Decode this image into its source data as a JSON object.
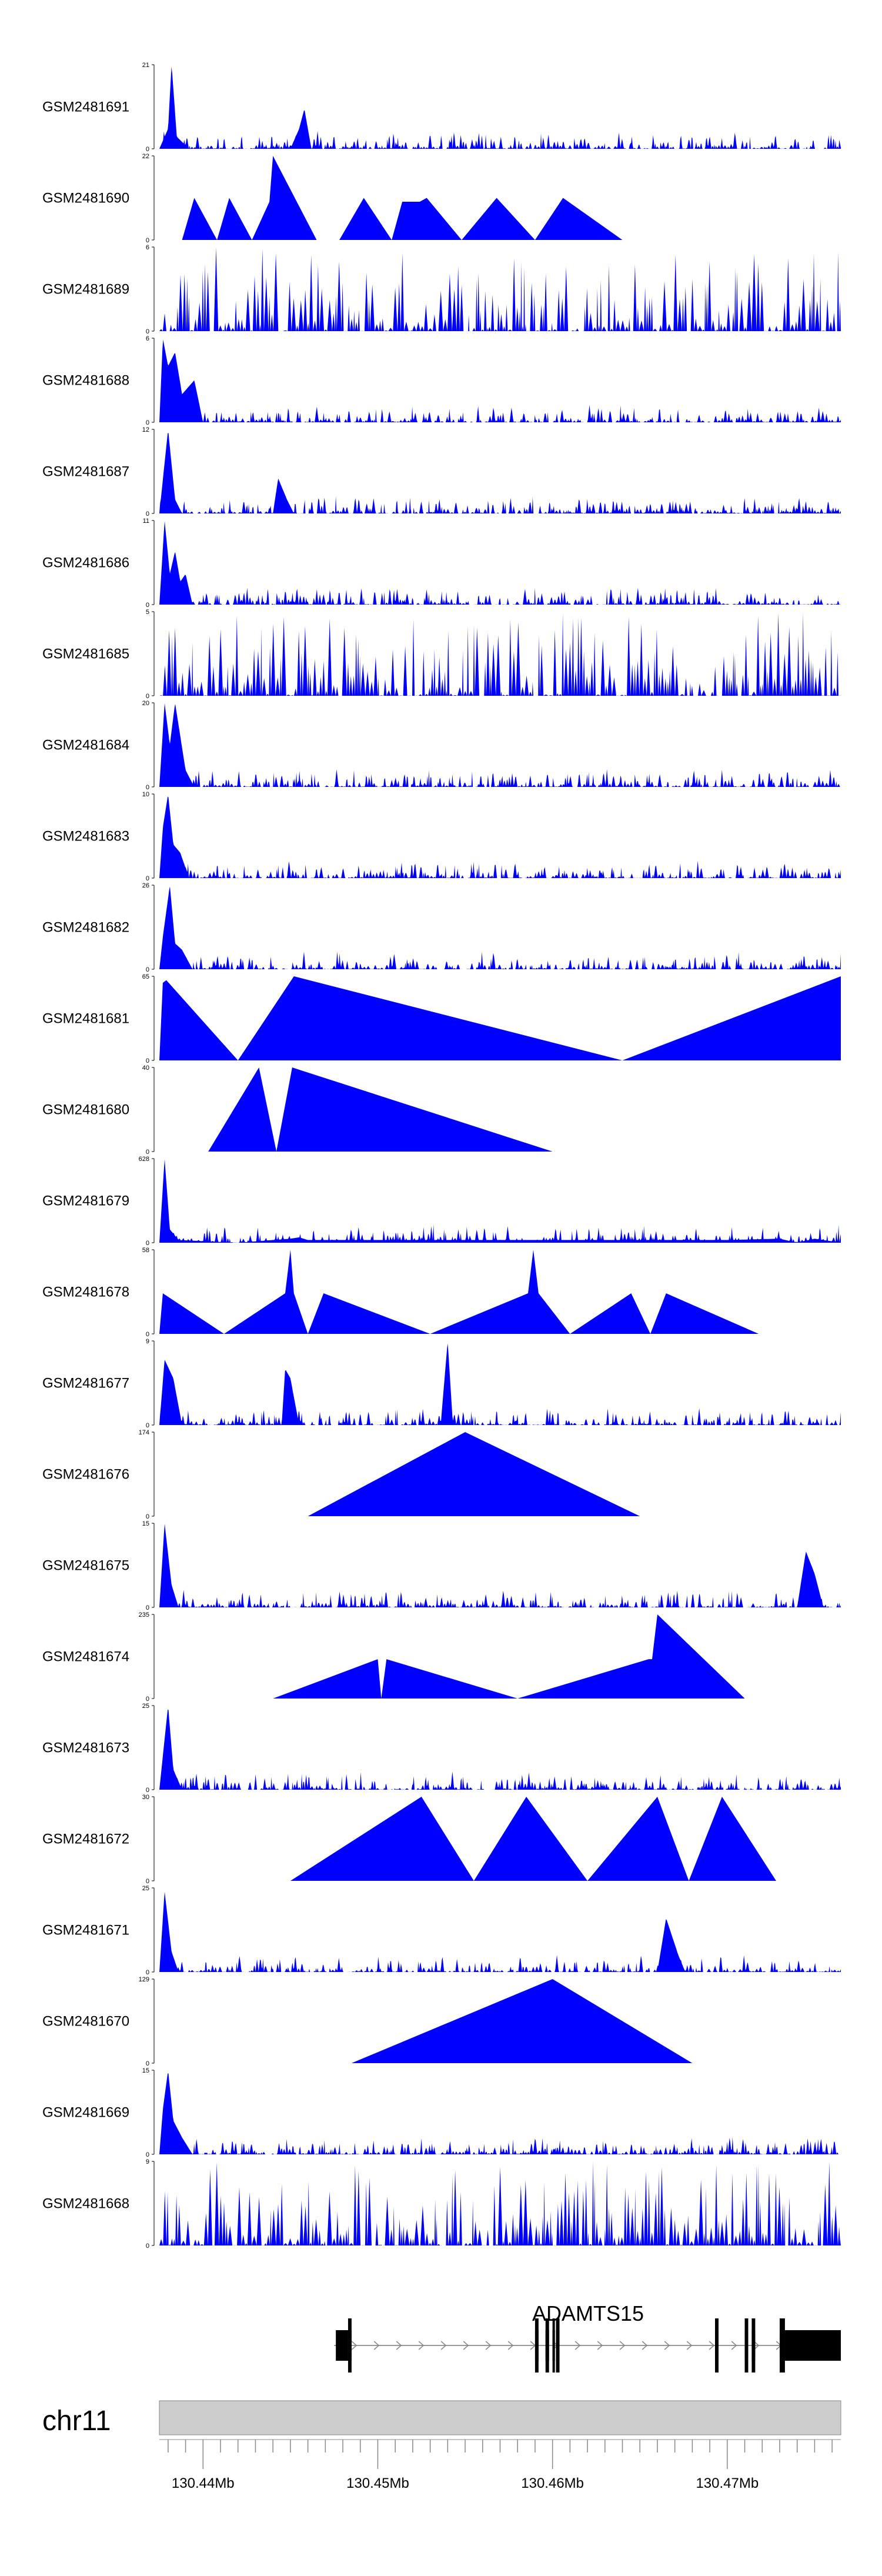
{
  "chart_data": {
    "type": "area",
    "title": "",
    "chromosome": "chr11",
    "gene": "ADAMTS15",
    "x_range_mb": [
      130.4375,
      130.4765
    ],
    "x_ticks": [
      "130.44Mb",
      "130.45Mb",
      "130.46Mb",
      "130.47Mb"
    ],
    "x_tick_values": [
      130.44,
      130.45,
      130.46,
      130.47
    ],
    "colors": {
      "fill": "#0000ff",
      "axis": "#000000",
      "ideogram": "#cccccc",
      "gene": "#000000"
    },
    "tracks": [
      {
        "name": "GSM2481691",
        "ymax": "21",
        "ymin": "0",
        "ymax_value": 21,
        "pattern": "noise",
        "points": [
          [
            130.4375,
            0
          ],
          [
            130.438,
            5
          ],
          [
            130.4382,
            21
          ],
          [
            130.4385,
            3
          ],
          [
            130.4392,
            0
          ],
          [
            130.445,
            0
          ],
          [
            130.4455,
            5
          ],
          [
            130.4458,
            10
          ],
          [
            130.4462,
            0
          ]
        ]
      },
      {
        "name": "GSM2481690",
        "ymax": "22",
        "ymin": "0",
        "ymax_value": 22,
        "pattern": "sparse",
        "points": [
          [
            130.4375,
            0
          ],
          [
            130.4388,
            0
          ],
          [
            130.4395,
            11
          ],
          [
            130.4408,
            0
          ],
          [
            130.4415,
            11
          ],
          [
            130.4428,
            0
          ],
          [
            130.4438,
            10
          ],
          [
            130.444,
            22
          ],
          [
            130.4465,
            0
          ],
          [
            130.4478,
            0
          ],
          [
            130.4492,
            11
          ],
          [
            130.4508,
            0
          ],
          [
            130.4514,
            10
          ],
          [
            130.4524,
            10
          ],
          [
            130.4528,
            11
          ],
          [
            130.4548,
            0
          ],
          [
            130.4568,
            11
          ],
          [
            130.459,
            0
          ],
          [
            130.4606,
            11
          ],
          [
            130.464,
            0
          ],
          [
            130.4765,
            0
          ]
        ]
      },
      {
        "name": "GSM2481689",
        "ymax": "6",
        "ymin": "0",
        "ymax_value": 6,
        "pattern": "dense"
      },
      {
        "name": "GSM2481688",
        "ymax": "6",
        "ymin": "0",
        "ymax_value": 6,
        "pattern": "noise",
        "points": [
          [
            130.4375,
            0
          ],
          [
            130.4377,
            6
          ],
          [
            130.438,
            4
          ],
          [
            130.4384,
            5
          ],
          [
            130.4388,
            2
          ],
          [
            130.4395,
            3
          ],
          [
            130.44,
            0
          ]
        ]
      },
      {
        "name": "GSM2481687",
        "ymax": "12",
        "ymin": "0",
        "ymax_value": 12,
        "pattern": "noise",
        "points": [
          [
            130.4375,
            0
          ],
          [
            130.438,
            12
          ],
          [
            130.4384,
            2
          ],
          [
            130.4388,
            0
          ],
          [
            130.444,
            0
          ],
          [
            130.4443,
            5
          ],
          [
            130.4448,
            2
          ],
          [
            130.4452,
            0
          ]
        ]
      },
      {
        "name": "GSM2481686",
        "ymax": "11",
        "ymin": "0",
        "ymax_value": 11,
        "pattern": "noise",
        "points": [
          [
            130.4375,
            0
          ],
          [
            130.4378,
            11
          ],
          [
            130.4381,
            4
          ],
          [
            130.4384,
            7
          ],
          [
            130.4387,
            3
          ],
          [
            130.439,
            4
          ],
          [
            130.4394,
            0
          ]
        ]
      },
      {
        "name": "GSM2481685",
        "ymax": "5",
        "ymin": "0",
        "ymax_value": 5,
        "pattern": "dense"
      },
      {
        "name": "GSM2481684",
        "ymax": "20",
        "ymin": "0",
        "ymax_value": 20,
        "pattern": "noise",
        "points": [
          [
            130.4375,
            0
          ],
          [
            130.4378,
            20
          ],
          [
            130.4381,
            10
          ],
          [
            130.4384,
            20
          ],
          [
            130.4387,
            12
          ],
          [
            130.439,
            4
          ],
          [
            130.4395,
            0
          ]
        ]
      },
      {
        "name": "GSM2481683",
        "ymax": "10",
        "ymin": "0",
        "ymax_value": 10,
        "pattern": "noise",
        "points": [
          [
            130.4375,
            0
          ],
          [
            130.4377,
            6
          ],
          [
            130.438,
            10
          ],
          [
            130.4383,
            4
          ],
          [
            130.4387,
            3
          ],
          [
            130.4392,
            0
          ]
        ]
      },
      {
        "name": "GSM2481682",
        "ymax": "26",
        "ymin": "0",
        "ymax_value": 26,
        "pattern": "noise",
        "points": [
          [
            130.4375,
            0
          ],
          [
            130.4377,
            10
          ],
          [
            130.4381,
            26
          ],
          [
            130.4384,
            8
          ],
          [
            130.4388,
            6
          ],
          [
            130.4394,
            0
          ]
        ]
      },
      {
        "name": "GSM2481681",
        "ymax": "65",
        "ymin": "0",
        "ymax_value": 65,
        "pattern": "sparse",
        "points": [
          [
            130.4375,
            0
          ],
          [
            130.4377,
            60
          ],
          [
            130.4379,
            62
          ],
          [
            130.442,
            0
          ],
          [
            130.4452,
            65
          ],
          [
            130.464,
            0
          ],
          [
            130.4765,
            65
          ]
        ]
      },
      {
        "name": "GSM2481680",
        "ymax": "40",
        "ymin": "0",
        "ymax_value": 40,
        "pattern": "sparse",
        "points": [
          [
            130.4375,
            0
          ],
          [
            130.4403,
            0
          ],
          [
            130.4432,
            40
          ],
          [
            130.4442,
            0
          ],
          [
            130.4451,
            40
          ],
          [
            130.46,
            0
          ],
          [
            130.4765,
            0
          ]
        ]
      },
      {
        "name": "GSM2481679",
        "ymax": "628",
        "ymin": "0",
        "ymax_value": 628,
        "pattern": "noise",
        "points": [
          [
            130.4375,
            0
          ],
          [
            130.4378,
            628
          ],
          [
            130.4381,
            100
          ],
          [
            130.4386,
            20
          ],
          [
            130.442,
            0
          ],
          [
            130.445,
            30
          ],
          [
            130.4455,
            40
          ],
          [
            130.446,
            20
          ],
          [
            130.47,
            20
          ],
          [
            130.473,
            30
          ],
          [
            130.474,
            0
          ],
          [
            130.475,
            30
          ],
          [
            130.4765,
            0
          ]
        ]
      },
      {
        "name": "GSM2481678",
        "ymax": "58",
        "ymin": "0",
        "ymax_value": 58,
        "pattern": "sparse",
        "points": [
          [
            130.4375,
            0
          ],
          [
            130.4377,
            28
          ],
          [
            130.4412,
            0
          ],
          [
            130.4447,
            28
          ],
          [
            130.445,
            58
          ],
          [
            130.4452,
            28
          ],
          [
            130.446,
            0
          ],
          [
            130.4469,
            28
          ],
          [
            130.453,
            0
          ],
          [
            130.4586,
            28
          ],
          [
            130.4589,
            58
          ],
          [
            130.4592,
            28
          ],
          [
            130.461,
            0
          ],
          [
            130.4645,
            28
          ],
          [
            130.4656,
            0
          ],
          [
            130.4665,
            28
          ],
          [
            130.4718,
            0
          ],
          [
            130.4765,
            0
          ]
        ]
      },
      {
        "name": "GSM2481677",
        "ymax": "9",
        "ymin": "0",
        "ymax_value": 9,
        "pattern": "noise",
        "points": [
          [
            130.4375,
            0
          ],
          [
            130.4378,
            7
          ],
          [
            130.4383,
            5
          ],
          [
            130.4388,
            0
          ],
          [
            130.4445,
            0
          ],
          [
            130.4447,
            6
          ],
          [
            130.445,
            5
          ],
          [
            130.4455,
            0
          ],
          [
            130.4536,
            0
          ],
          [
            130.454,
            9
          ],
          [
            130.4543,
            0
          ]
        ]
      },
      {
        "name": "GSM2481676",
        "ymax": "174",
        "ymin": "0",
        "ymax_value": 174,
        "pattern": "sparse",
        "points": [
          [
            130.4375,
            0
          ],
          [
            130.446,
            0
          ],
          [
            130.455,
            174
          ],
          [
            130.465,
            0
          ],
          [
            130.4765,
            0
          ]
        ]
      },
      {
        "name": "GSM2481675",
        "ymax": "15",
        "ymin": "0",
        "ymax_value": 15,
        "pattern": "noise",
        "points": [
          [
            130.4375,
            0
          ],
          [
            130.4378,
            15
          ],
          [
            130.4382,
            4
          ],
          [
            130.4386,
            0
          ],
          [
            130.474,
            0
          ],
          [
            130.4745,
            10
          ],
          [
            130.475,
            6
          ],
          [
            130.4755,
            0
          ]
        ]
      },
      {
        "name": "GSM2481674",
        "ymax": "235",
        "ymin": "0",
        "ymax_value": 235,
        "pattern": "sparse",
        "points": [
          [
            130.4375,
            0
          ],
          [
            130.444,
            0
          ],
          [
            130.45,
            110
          ],
          [
            130.4502,
            0
          ],
          [
            130.4505,
            110
          ],
          [
            130.458,
            0
          ],
          [
            130.4655,
            110
          ],
          [
            130.4657,
            110
          ],
          [
            130.466,
            235
          ],
          [
            130.471,
            0
          ],
          [
            130.4765,
            0
          ]
        ]
      },
      {
        "name": "GSM2481673",
        "ymax": "25",
        "ymin": "0",
        "ymax_value": 25,
        "pattern": "noise",
        "points": [
          [
            130.4375,
            0
          ],
          [
            130.4377,
            10
          ],
          [
            130.438,
            25
          ],
          [
            130.4383,
            6
          ],
          [
            130.4388,
            0
          ]
        ]
      },
      {
        "name": "GSM2481672",
        "ymax": "30",
        "ymin": "0",
        "ymax_value": 30,
        "pattern": "sparse",
        "points": [
          [
            130.4375,
            0
          ],
          [
            130.445,
            0
          ],
          [
            130.4525,
            30
          ],
          [
            130.4555,
            0
          ],
          [
            130.4585,
            30
          ],
          [
            130.462,
            0
          ],
          [
            130.466,
            30
          ],
          [
            130.4678,
            0
          ],
          [
            130.4697,
            30
          ],
          [
            130.4728,
            0
          ],
          [
            130.4765,
            0
          ]
        ]
      },
      {
        "name": "GSM2481671",
        "ymax": "25",
        "ymin": "0",
        "ymax_value": 25,
        "pattern": "noise",
        "points": [
          [
            130.4375,
            0
          ],
          [
            130.4378,
            24
          ],
          [
            130.4382,
            6
          ],
          [
            130.4386,
            0
          ],
          [
            130.466,
            0
          ],
          [
            130.4665,
            16
          ],
          [
            130.4672,
            5
          ],
          [
            130.4676,
            0
          ]
        ]
      },
      {
        "name": "GSM2481670",
        "ymax": "129",
        "ymin": "0",
        "ymax_value": 129,
        "pattern": "sparse",
        "points": [
          [
            130.4375,
            0
          ],
          [
            130.4485,
            0
          ],
          [
            130.46,
            129
          ],
          [
            130.468,
            0
          ],
          [
            130.4765,
            0
          ]
        ]
      },
      {
        "name": "GSM2481669",
        "ymax": "15",
        "ymin": "0",
        "ymax_value": 15,
        "pattern": "noise",
        "points": [
          [
            130.4375,
            0
          ],
          [
            130.4377,
            8
          ],
          [
            130.438,
            15
          ],
          [
            130.4383,
            6
          ],
          [
            130.4388,
            3
          ],
          [
            130.4394,
            0
          ]
        ]
      },
      {
        "name": "GSM2481668",
        "ymax": "9",
        "ymin": "0",
        "ymax_value": 9,
        "pattern": "dense"
      }
    ],
    "gene_model": {
      "name": "ADAMTS15",
      "start": 130.4475,
      "end": 130.4765,
      "strand": "+",
      "exons": [
        [
          130.4476,
          130.4483
        ],
        [
          130.4483,
          130.4485
        ],
        [
          130.459,
          130.4592
        ],
        [
          130.4596,
          130.4598
        ],
        [
          130.46,
          130.4601
        ],
        [
          130.4602,
          130.4604
        ],
        [
          130.4693,
          130.4695
        ],
        [
          130.471,
          130.4712
        ],
        [
          130.4714,
          130.4716
        ],
        [
          130.473,
          130.4733
        ],
        [
          130.4733,
          130.4765
        ]
      ],
      "thick_exons": [
        [
          130.4483,
          130.4485
        ],
        [
          130.459,
          130.4592
        ],
        [
          130.4596,
          130.4598
        ],
        [
          130.46,
          130.4601
        ],
        [
          130.4602,
          130.4604
        ],
        [
          130.4693,
          130.4695
        ],
        [
          130.471,
          130.4712
        ],
        [
          130.4714,
          130.4716
        ],
        [
          130.473,
          130.4733
        ]
      ]
    }
  }
}
